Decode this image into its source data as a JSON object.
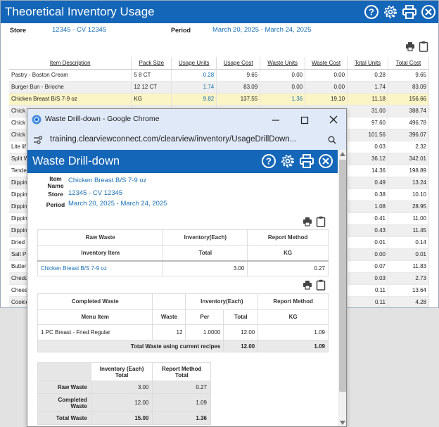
{
  "bg": {
    "title": "Theoretical Inventory Usage",
    "store_label": "Store",
    "store_value": "12345 - CV 12345",
    "period_label": "Period",
    "period_value": "March 20, 2025 - March 24, 2025",
    "icons": [
      "help-icon",
      "gear-icon",
      "print-icon",
      "close-icon"
    ],
    "columns": [
      "Item Description",
      "Pack Size",
      "Usage Units",
      "Usage Cost",
      "Waste Units",
      "Waste Cost",
      "Total Units",
      "Total Cost"
    ],
    "rows": [
      {
        "desc": "Pastry - Boston Cream",
        "pack": "5 8 CT",
        "uu": "0.28",
        "uc": "9.65",
        "wu": "0.00",
        "wc": "0.00",
        "tu": "0.28",
        "tc": "9.65"
      },
      {
        "desc": "Burger Bun - Brioche",
        "pack": "12 12 CT",
        "uu": "1.74",
        "uc": "83.09",
        "wu": "0.00",
        "wc": "0.00",
        "tu": "1.74",
        "tc": "83.09"
      },
      {
        "desc": "Chicken Breast B/S 7-9 oz",
        "pack": "KG",
        "uu": "9.82",
        "uc": "137.55",
        "wu": "1.36",
        "wc": "19.10",
        "tu": "11.18",
        "tc": "156.66"
      },
      {
        "desc": "Chick",
        "tu": "31.00",
        "tc": "388.74"
      },
      {
        "desc": "Chick",
        "tu": "97.60",
        "tc": "496.78"
      },
      {
        "desc": "Chick",
        "tu": "101.56",
        "tc": "396.07"
      },
      {
        "desc": "Lite lif",
        "tu": "0.03",
        "tc": "2.32"
      },
      {
        "desc": "Split W",
        "tu": "36.12",
        "tc": "342.01"
      },
      {
        "desc": "Tende",
        "tu": "14.36",
        "tc": "198.89"
      },
      {
        "desc": "Dippin",
        "tu": "0.49",
        "tc": "13.24"
      },
      {
        "desc": "Dippin",
        "tu": "0.38",
        "tc": "10.10"
      },
      {
        "desc": "Dippin",
        "tu": "1.08",
        "tc": "28.95"
      },
      {
        "desc": "Dippin",
        "tu": "0.41",
        "tc": "11.00"
      },
      {
        "desc": "Dippin",
        "tu": "0.43",
        "tc": "11.45"
      },
      {
        "desc": "Dried",
        "tu": "0.01",
        "tc": "0.14"
      },
      {
        "desc": "Salt P",
        "tu": "0.00",
        "tc": "0.01"
      },
      {
        "desc": "Butter",
        "tu": "0.07",
        "tc": "11.83"
      },
      {
        "desc": "Chedd",
        "tu": "0.03",
        "tc": "2.73"
      },
      {
        "desc": "Chees",
        "tu": "0.11",
        "tc": "13.64"
      },
      {
        "desc": "Cookie",
        "tu": "0.11",
        "tc": "4.28"
      }
    ]
  },
  "chrome": {
    "tab_title": "Waste Drill-down - Google Chrome",
    "url": "training.clearviewconnect.com/clearview/inventory/UsageDrillDown..."
  },
  "popup": {
    "title": "Waste Drill-down",
    "item_name_label": "Item Name",
    "item_name_value": "Chicken Breast B/S 7-9 oz",
    "store_label": "Store",
    "store_value": "12345 - CV 12345",
    "period_label": "Period",
    "period_value": "March 20, 2025 - March 24, 2025",
    "raw": {
      "h1": "Raw Waste",
      "h2": "Inventory(Each)",
      "h3": "Report Method",
      "s1": "Inventory Item",
      "s2": "Total",
      "s3": "KG",
      "item": "Chicken Breast B/S 7-9 oz",
      "total": "3.00",
      "kg": "0.27"
    },
    "completed": {
      "h1": "Completed Waste",
      "h2": "Inventory(Each)",
      "h3": "Report Method",
      "s1": "Menu Item",
      "s2": "Waste",
      "s3": "Per",
      "s4": "Total",
      "s5": "KG",
      "item": "1 PC Breast - Fried Regular",
      "waste": "12",
      "per": "1.0000",
      "total": "12.00",
      "kg": "1.09",
      "tot_label": "Total Waste using current recipes",
      "tot_total": "12.00",
      "tot_kg": "1.09"
    },
    "summary": {
      "h1": "Inventory (Each) Total",
      "h2": "Report Method Total",
      "r1": "Raw Waste",
      "r1a": "3.00",
      "r1b": "0.27",
      "r2": "Completed Waste",
      "r2a": "12.00",
      "r2b": "1.09",
      "r3": "Total Waste",
      "r3a": "15.00",
      "r3b": "1.36"
    }
  }
}
